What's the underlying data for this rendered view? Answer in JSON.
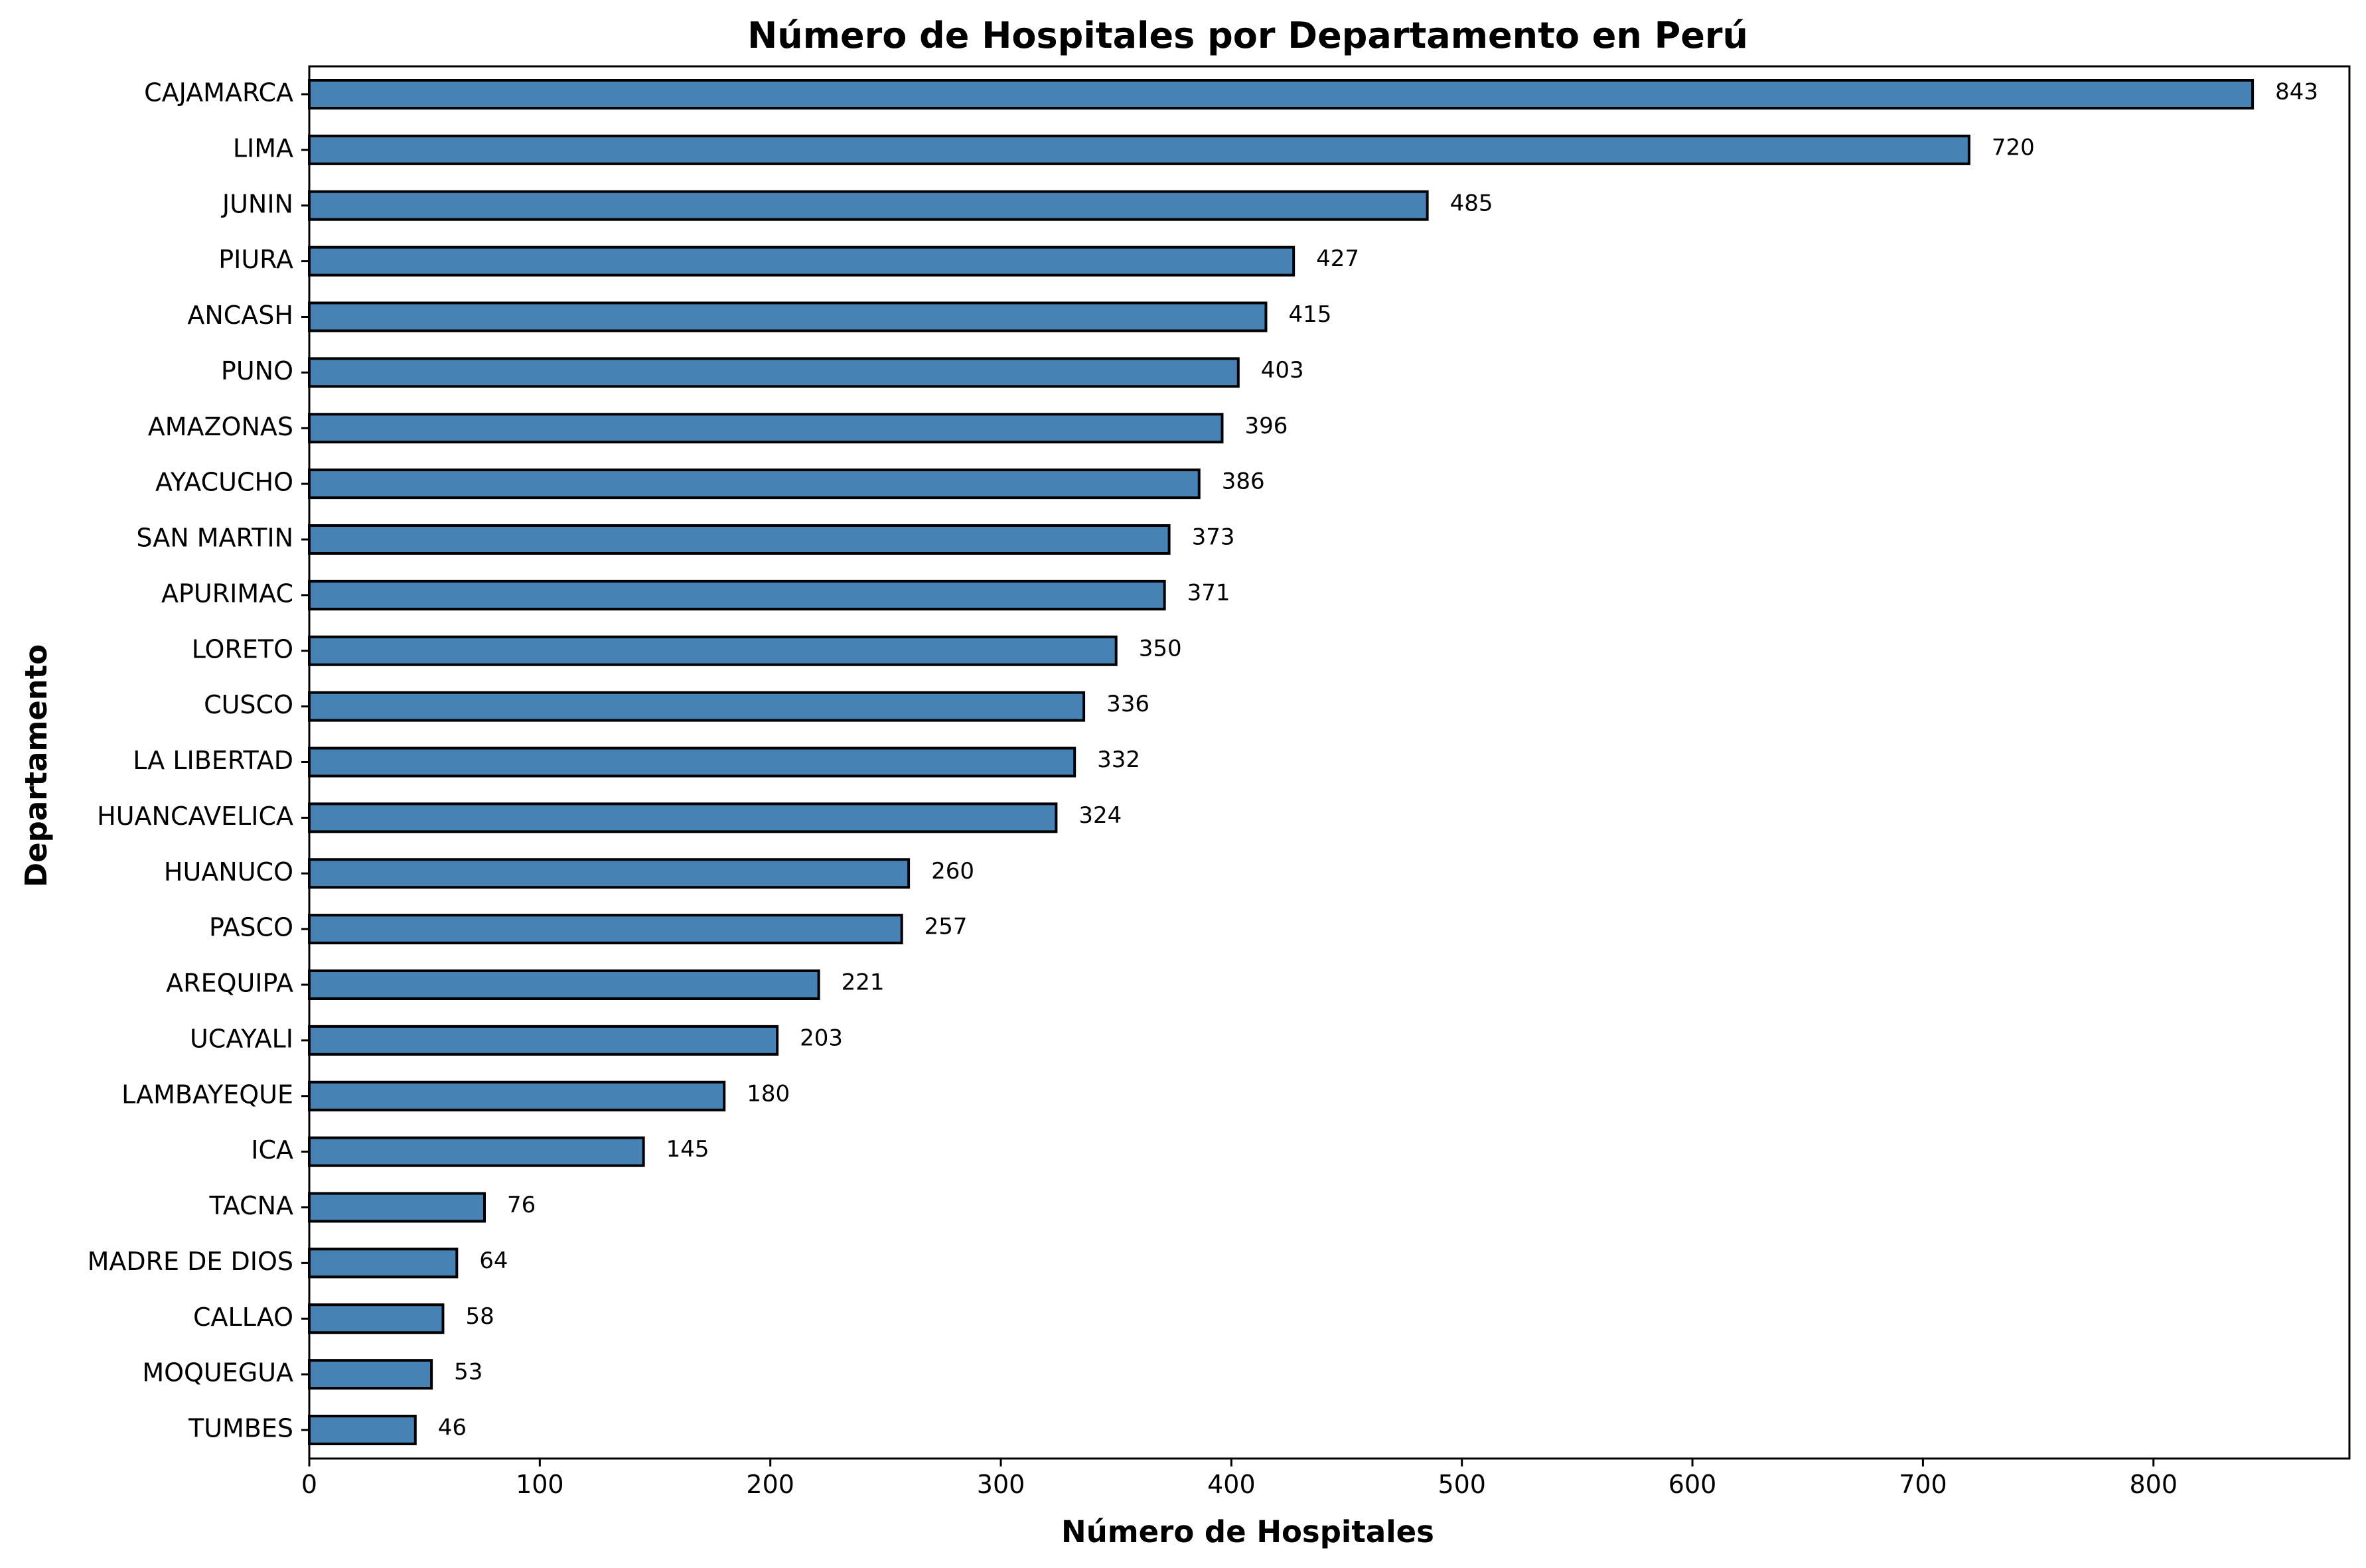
{
  "chart_data": {
    "type": "bar",
    "orientation": "horizontal",
    "title": "Número de Hospitales por Departamento en Perú",
    "xlabel": "Número de Hospitales",
    "ylabel": "Departamento",
    "categories": [
      "CAJAMARCA",
      "LIMA",
      "JUNIN",
      "PIURA",
      "ANCASH",
      "PUNO",
      "AMAZONAS",
      "AYACUCHO",
      "SAN MARTIN",
      "APURIMAC",
      "LORETO",
      "CUSCO",
      "LA LIBERTAD",
      "HUANCAVELICA",
      "HUANUCO",
      "PASCO",
      "AREQUIPA",
      "UCAYALI",
      "LAMBAYEQUE",
      "ICA",
      "TACNA",
      "MADRE DE DIOS",
      "CALLAO",
      "MOQUEGUA",
      "TUMBES"
    ],
    "values": [
      843,
      720,
      485,
      427,
      415,
      403,
      396,
      386,
      373,
      371,
      350,
      336,
      332,
      324,
      260,
      257,
      221,
      203,
      180,
      145,
      76,
      64,
      58,
      53,
      46
    ],
    "xlim": [
      0,
      885
    ],
    "xticks": [
      0,
      100,
      200,
      300,
      400,
      500,
      600,
      700,
      800
    ],
    "grid": false,
    "legend": "none",
    "bar_color": "#4682b4",
    "edge_color": "#000000"
  }
}
